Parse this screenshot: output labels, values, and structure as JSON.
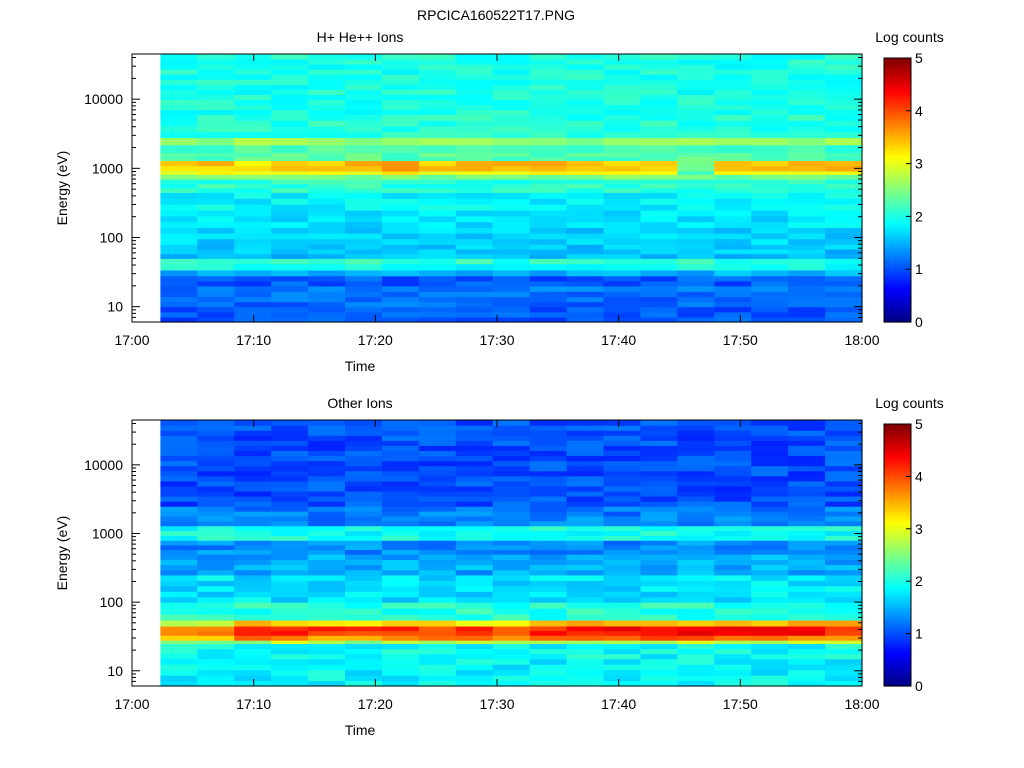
{
  "figure_title": "RPCICA160522T17.PNG",
  "chart_data": [
    {
      "type": "heatmap",
      "title": "H+ He++ Ions",
      "xlabel": "Time",
      "ylabel": "Energy (eV)",
      "x_ticks": [
        "17:00",
        "17:10",
        "17:20",
        "17:30",
        "17:40",
        "17:50",
        "18:00"
      ],
      "y_ticks": [
        {
          "value": 10,
          "label": "10"
        },
        {
          "value": 100,
          "label": "100"
        },
        {
          "value": 1000,
          "label": "1000"
        },
        {
          "value": 10000,
          "label": "10000"
        }
      ],
      "y_scale": "log",
      "x_range": [
        "17:00",
        "18:00"
      ],
      "y_range": [
        6,
        45000
      ],
      "data_start": "17:02:20",
      "data_end": "18:00:00",
      "colorbar": {
        "label": "Log counts",
        "min": 0,
        "max": 5,
        "ticks": [
          "0",
          "1",
          "2",
          "3",
          "4",
          "5"
        ],
        "colormap": "jet"
      },
      "energy_bands": [
        {
          "e_low": 6,
          "e_high": 10,
          "log_counts": 1.05
        },
        {
          "e_low": 10,
          "e_high": 14,
          "log_counts": 1.15
        },
        {
          "e_low": 14,
          "e_high": 20,
          "log_counts": 1.2
        },
        {
          "e_low": 20,
          "e_high": 28,
          "log_counts": 1.05
        },
        {
          "e_low": 28,
          "e_high": 34,
          "log_counts": 1.5
        },
        {
          "e_low": 34,
          "e_high": 42,
          "log_counts": 1.95
        },
        {
          "e_low": 42,
          "e_high": 50,
          "log_counts": 2.1
        },
        {
          "e_low": 50,
          "e_high": 80,
          "log_counts": 1.6
        },
        {
          "e_low": 80,
          "e_high": 140,
          "log_counts": 1.65
        },
        {
          "e_low": 140,
          "e_high": 250,
          "log_counts": 1.75
        },
        {
          "e_low": 250,
          "e_high": 450,
          "log_counts": 1.85
        },
        {
          "e_low": 450,
          "e_high": 700,
          "log_counts": 2.1
        },
        {
          "e_low": 700,
          "e_high": 820,
          "log_counts": 2.45
        },
        {
          "e_low": 820,
          "e_high": 920,
          "log_counts": 3.0
        },
        {
          "e_low": 920,
          "e_high": 1300,
          "log_counts": 3.35
        },
        {
          "e_low": 1300,
          "e_high": 1700,
          "log_counts": 2.3
        },
        {
          "e_low": 1700,
          "e_high": 2200,
          "log_counts": 2.2
        },
        {
          "e_low": 2200,
          "e_high": 2800,
          "log_counts": 2.6
        },
        {
          "e_low": 2800,
          "e_high": 6000,
          "log_counts": 2.05
        },
        {
          "e_low": 6000,
          "e_high": 45000,
          "log_counts": 2.0
        }
      ],
      "time_modulation": [
        0,
        0.05,
        -0.05,
        0.05,
        0.1,
        0.1,
        0.2,
        0.05,
        0.1,
        0.05,
        0.1,
        0.05,
        0.05,
        0.05,
        -0.8,
        0.05,
        0.15,
        0.05,
        0.1
      ],
      "modulated_band": [
        820,
        1300
      ],
      "noise_amplitude": 0.18
    },
    {
      "type": "heatmap",
      "title": "Other Ions",
      "xlabel": "Time",
      "ylabel": "Energy (eV)",
      "x_ticks": [
        "17:00",
        "17:10",
        "17:20",
        "17:30",
        "17:40",
        "17:50",
        "18:00"
      ],
      "y_ticks": [
        {
          "value": 10,
          "label": "10"
        },
        {
          "value": 100,
          "label": "100"
        },
        {
          "value": 1000,
          "label": "1000"
        },
        {
          "value": 10000,
          "label": "10000"
        }
      ],
      "y_scale": "log",
      "x_range": [
        "17:00",
        "18:00"
      ],
      "y_range": [
        6,
        45000
      ],
      "data_start": "17:02:20",
      "data_end": "18:00:00",
      "colorbar": {
        "label": "Log counts",
        "min": 0,
        "max": 5,
        "ticks": [
          "0",
          "1",
          "2",
          "3",
          "4",
          "5"
        ],
        "colormap": "jet"
      },
      "energy_bands": [
        {
          "e_low": 6,
          "e_high": 15,
          "log_counts": 1.85
        },
        {
          "e_low": 15,
          "e_high": 25,
          "log_counts": 1.9
        },
        {
          "e_low": 25,
          "e_high": 28,
          "log_counts": 2.6
        },
        {
          "e_low": 28,
          "e_high": 33,
          "log_counts": 3.6
        },
        {
          "e_low": 33,
          "e_high": 45,
          "log_counts": 4.05
        },
        {
          "e_low": 45,
          "e_high": 55,
          "log_counts": 3.2
        },
        {
          "e_low": 55,
          "e_high": 100,
          "log_counts": 2.05
        },
        {
          "e_low": 100,
          "e_high": 250,
          "log_counts": 1.75
        },
        {
          "e_low": 250,
          "e_high": 500,
          "log_counts": 1.45
        },
        {
          "e_low": 500,
          "e_high": 800,
          "log_counts": 1.3
        },
        {
          "e_low": 800,
          "e_high": 1300,
          "log_counts": 1.95
        },
        {
          "e_low": 1300,
          "e_high": 2500,
          "log_counts": 1.25
        },
        {
          "e_low": 2500,
          "e_high": 45000,
          "log_counts": 1.0
        }
      ],
      "time_modulation": [
        -0.3,
        -0.25,
        0.1,
        0.2,
        0.1,
        0.05,
        0.05,
        0.05,
        0.05,
        0.05,
        0.2,
        0.2,
        0.25,
        0.3,
        0.35,
        0.3,
        0.3,
        0.25,
        0.2
      ],
      "modulated_band": [
        25,
        55
      ],
      "noise_amplitude": 0.22
    }
  ]
}
